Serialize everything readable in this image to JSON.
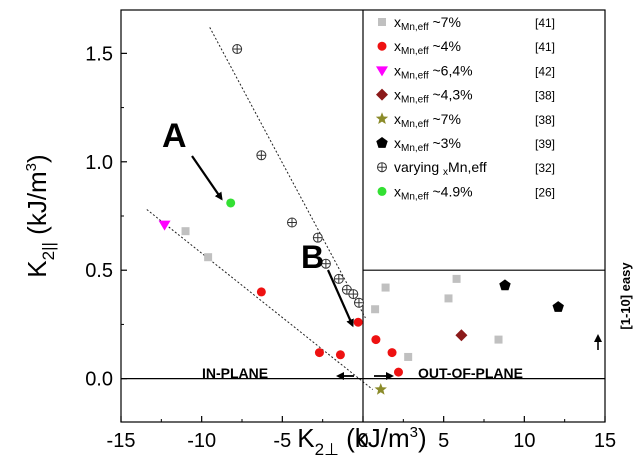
{
  "chart_data": {
    "type": "scatter",
    "xlabel_main": "K",
    "xlabel_sub": "2⊥",
    "xlabel_unit": " (kJ/m",
    "xlabel_exp": "3",
    "xlabel_close": ")",
    "ylabel_main": "K",
    "ylabel_sub": "2||",
    "ylabel_unit": " (kJ/m",
    "ylabel_exp": "3",
    "ylabel_close": ")",
    "xlim": [
      -15,
      15
    ],
    "ylim": [
      -0.2,
      1.7
    ],
    "x_ticks": [
      -15,
      -10,
      -5,
      0,
      5,
      10,
      15
    ],
    "y_ticks": [
      0.0,
      0.5,
      1.0,
      1.5
    ],
    "x_tick_labels": [
      "-15",
      "-10",
      "-5",
      "0",
      "5",
      "10",
      "15"
    ],
    "y_tick_labels": [
      "0.0",
      "0.5",
      "1.0",
      "1.5"
    ],
    "grid": false,
    "legend_position": "top-right",
    "series": [
      {
        "label_main": "x",
        "label_sub": "Mn,eff",
        "label_rest": " ~7%",
        "ref": "[41]",
        "marker": "square",
        "color": "#c0c0c0",
        "points": [
          [
            -11,
            0.68
          ],
          [
            -9.6,
            0.56
          ],
          [
            0.75,
            0.32
          ],
          [
            1.4,
            0.42
          ],
          [
            2.8,
            0.1
          ],
          [
            5.3,
            0.37
          ],
          [
            5.8,
            0.46
          ],
          [
            8.4,
            0.18
          ]
        ]
      },
      {
        "label_main": "x",
        "label_sub": "Mn,eff",
        "label_rest": " ~4%",
        "ref": "[41]",
        "marker": "circle",
        "color": "#ee1111",
        "points": [
          [
            -6.3,
            0.4
          ],
          [
            -2.7,
            0.12
          ],
          [
            -1.4,
            0.11
          ],
          [
            -0.3,
            0.26
          ],
          [
            0.8,
            0.18
          ],
          [
            1.8,
            0.12
          ],
          [
            2.2,
            0.03
          ]
        ]
      },
      {
        "label_main": "x",
        "label_sub": "Mn,eff",
        "label_rest": " ~6,4%",
        "ref": "[42]",
        "marker": "triangle-down",
        "color": "#ff00ff",
        "points": [
          [
            -12.3,
            0.71
          ]
        ]
      },
      {
        "label_main": "x",
        "label_sub": "Mn,eff",
        "label_rest": " ~4,3%",
        "ref": "[38]",
        "marker": "diamond",
        "color": "#8b1a1a",
        "points": [
          [
            6.1,
            0.2
          ]
        ]
      },
      {
        "label_main": "x",
        "label_sub": "Mn,eff",
        "label_rest": " ~7%",
        "ref": "[38]",
        "marker": "star",
        "color": "#8b8b2a",
        "points": [
          [
            1.1,
            -0.05
          ]
        ]
      },
      {
        "label_main": "x",
        "label_sub": "Mn,eff",
        "label_rest": " ~3%",
        "ref": "[39]",
        "marker": "pentagon",
        "color": "#000000",
        "points": [
          [
            8.8,
            0.43
          ],
          [
            12.1,
            0.33
          ]
        ]
      },
      {
        "label_main": "varying ",
        "label_sub": "x",
        "label_rest": "Mn,eff",
        "ref": "[32]",
        "marker": "circle-cross",
        "color": "#333333",
        "points": [
          [
            -7.8,
            1.52
          ],
          [
            -6.3,
            1.03
          ],
          [
            -4.4,
            0.72
          ],
          [
            -2.8,
            0.65
          ],
          [
            -2.3,
            0.53
          ],
          [
            -1.5,
            0.46
          ],
          [
            -1.0,
            0.41
          ],
          [
            -0.6,
            0.39
          ],
          [
            -0.25,
            0.35
          ]
        ]
      },
      {
        "label_main": "x",
        "label_sub": "Mn,eff",
        "label_rest": " ~4.9%",
        "ref": "[26]",
        "marker": "circle",
        "color": "#33e033",
        "points": [
          [
            -8.2,
            0.81
          ]
        ]
      }
    ],
    "trend_lines": [
      {
        "from": [
          -9.5,
          1.62
        ],
        "to": [
          0.15,
          0.28
        ]
      },
      {
        "from": [
          -13.4,
          0.78
        ],
        "to": [
          0.6,
          -0.05
        ]
      }
    ],
    "annotations": {
      "label_a": "A",
      "label_b": "B",
      "in_plane": "IN-PLANE",
      "out_of_plane": "OUT-OF-PLANE",
      "easy_axis": "[1-10] easy"
    },
    "annotation_targets": {
      "a_arrow_to": [
        -8.4,
        0.82
      ],
      "b_arrow_to": [
        -0.4,
        0.25
      ]
    }
  }
}
